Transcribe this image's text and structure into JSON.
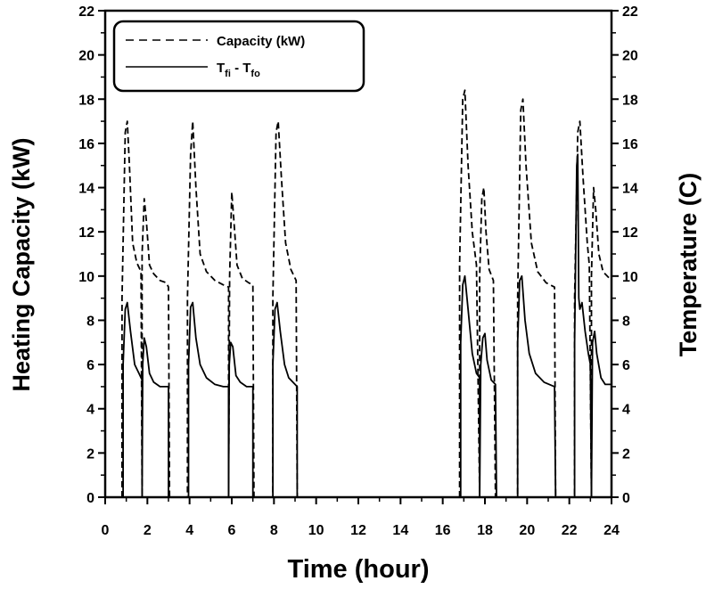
{
  "chart_data": {
    "type": "line",
    "xlabel": "Time (hour)",
    "ylabel": "Heating Capacity (kW)",
    "y2label": "Temperature (C)",
    "xlim": [
      0,
      24
    ],
    "ylim": [
      0,
      22
    ],
    "y2lim": [
      0,
      22
    ],
    "xticks": [
      "0",
      "2",
      "4",
      "6",
      "8",
      "10",
      "12",
      "14",
      "16",
      "18",
      "20",
      "22",
      "24"
    ],
    "yticks": [
      "0",
      "2",
      "4",
      "6",
      "8",
      "10",
      "12",
      "14",
      "16",
      "18",
      "20",
      "22"
    ],
    "grid": false,
    "legend": {
      "placement": "top-left",
      "entries": [
        {
          "label": "Capacity (kW)",
          "style": "dashed"
        },
        {
          "label": "T",
          "sub1": "fi",
          "mid": " - T",
          "sub2": "fo",
          "style": "solid"
        }
      ]
    },
    "series": [
      {
        "style": "dashed",
        "axis": "left",
        "points": [
          [
            0.8,
            0
          ],
          [
            0.8,
            9
          ],
          [
            0.95,
            16.5
          ],
          [
            1.05,
            17
          ],
          [
            1.15,
            15
          ],
          [
            1.3,
            11.5
          ],
          [
            1.5,
            10.6
          ],
          [
            1.7,
            10.2
          ],
          [
            1.75,
            0
          ],
          [
            1.75,
            11
          ],
          [
            1.85,
            13.5
          ],
          [
            1.95,
            12.5
          ],
          [
            2.1,
            10.5
          ],
          [
            2.3,
            10.1
          ],
          [
            2.6,
            9.8
          ],
          [
            2.9,
            9.7
          ],
          [
            3.0,
            9.5
          ],
          [
            3.05,
            0
          ],
          [
            3.9,
            0
          ],
          [
            3.9,
            9
          ],
          [
            4.05,
            15.5
          ],
          [
            4.15,
            17
          ],
          [
            4.3,
            14
          ],
          [
            4.5,
            11
          ],
          [
            4.8,
            10.2
          ],
          [
            5.2,
            9.8
          ],
          [
            5.6,
            9.6
          ],
          [
            5.85,
            9.5
          ],
          [
            5.85,
            0
          ],
          [
            5.9,
            10
          ],
          [
            6.0,
            13.8
          ],
          [
            6.1,
            12.5
          ],
          [
            6.25,
            10.5
          ],
          [
            6.5,
            9.9
          ],
          [
            6.8,
            9.7
          ],
          [
            7.0,
            9.6
          ],
          [
            7.05,
            0
          ],
          [
            7.95,
            0
          ],
          [
            7.95,
            9
          ],
          [
            8.1,
            16.5
          ],
          [
            8.2,
            17
          ],
          [
            8.35,
            14.5
          ],
          [
            8.55,
            11.5
          ],
          [
            8.8,
            10.3
          ],
          [
            9.05,
            9.8
          ],
          [
            9.1,
            0
          ],
          [
            16.8,
            0
          ],
          [
            16.8,
            10.5
          ],
          [
            16.95,
            18
          ],
          [
            17.05,
            18.4
          ],
          [
            17.2,
            15
          ],
          [
            17.4,
            12
          ],
          [
            17.6,
            10.5
          ],
          [
            17.75,
            0
          ],
          [
            17.75,
            10
          ],
          [
            17.85,
            13.5
          ],
          [
            17.95,
            14
          ],
          [
            18.05,
            12
          ],
          [
            18.2,
            10.3
          ],
          [
            18.4,
            9.8
          ],
          [
            18.5,
            0
          ],
          [
            19.55,
            0
          ],
          [
            19.55,
            9
          ],
          [
            19.7,
            17.5
          ],
          [
            19.8,
            18
          ],
          [
            19.95,
            15
          ],
          [
            20.2,
            11.5
          ],
          [
            20.5,
            10.2
          ],
          [
            20.9,
            9.7
          ],
          [
            21.3,
            9.5
          ],
          [
            21.35,
            0
          ],
          [
            22.25,
            0
          ],
          [
            22.25,
            9
          ],
          [
            22.4,
            16.5
          ],
          [
            22.5,
            17
          ],
          [
            22.65,
            14.5
          ],
          [
            22.85,
            11.5
          ],
          [
            22.95,
            10.5
          ],
          [
            23.05,
            0
          ],
          [
            23.05,
            10
          ],
          [
            23.15,
            14
          ],
          [
            23.25,
            13
          ],
          [
            23.4,
            11
          ],
          [
            23.6,
            10.2
          ],
          [
            23.9,
            9.9
          ],
          [
            24,
            9.9
          ]
        ]
      },
      {
        "style": "solid",
        "axis": "right",
        "points": [
          [
            0.85,
            0
          ],
          [
            0.85,
            6
          ],
          [
            0.95,
            8.5
          ],
          [
            1.05,
            8.8
          ],
          [
            1.2,
            7.5
          ],
          [
            1.4,
            6
          ],
          [
            1.6,
            5.6
          ],
          [
            1.75,
            5.3
          ],
          [
            1.75,
            0
          ],
          [
            1.78,
            6
          ],
          [
            1.85,
            7.2
          ],
          [
            1.95,
            6.8
          ],
          [
            2.1,
            5.6
          ],
          [
            2.3,
            5.2
          ],
          [
            2.6,
            5.0
          ],
          [
            2.9,
            5.0
          ],
          [
            3.0,
            5.0
          ],
          [
            3.0,
            0
          ],
          [
            3.95,
            0
          ],
          [
            3.95,
            6
          ],
          [
            4.05,
            8.6
          ],
          [
            4.15,
            8.8
          ],
          [
            4.3,
            7.2
          ],
          [
            4.5,
            6
          ],
          [
            4.8,
            5.4
          ],
          [
            5.2,
            5.1
          ],
          [
            5.6,
            5.0
          ],
          [
            5.85,
            5.0
          ],
          [
            5.85,
            0
          ],
          [
            5.88,
            6
          ],
          [
            5.95,
            7.0
          ],
          [
            6.05,
            6.8
          ],
          [
            6.2,
            5.5
          ],
          [
            6.4,
            5.2
          ],
          [
            6.7,
            5.0
          ],
          [
            7.0,
            5.0
          ],
          [
            7.0,
            0
          ],
          [
            7.95,
            0
          ],
          [
            7.95,
            6
          ],
          [
            8.05,
            8.5
          ],
          [
            8.15,
            8.8
          ],
          [
            8.3,
            7.5
          ],
          [
            8.5,
            6
          ],
          [
            8.7,
            5.4
          ],
          [
            9.0,
            5.1
          ],
          [
            9.1,
            5.0
          ],
          [
            9.1,
            0
          ],
          [
            16.85,
            0
          ],
          [
            16.85,
            7
          ],
          [
            16.95,
            9.6
          ],
          [
            17.05,
            10
          ],
          [
            17.2,
            8.5
          ],
          [
            17.4,
            6.5
          ],
          [
            17.6,
            5.6
          ],
          [
            17.75,
            5.4
          ],
          [
            17.75,
            0
          ],
          [
            17.8,
            6
          ],
          [
            17.9,
            7.2
          ],
          [
            18.0,
            7.4
          ],
          [
            18.1,
            6.2
          ],
          [
            18.3,
            5.3
          ],
          [
            18.5,
            5.1
          ],
          [
            18.55,
            0
          ],
          [
            19.55,
            0
          ],
          [
            19.55,
            7
          ],
          [
            19.65,
            9.8
          ],
          [
            19.75,
            10
          ],
          [
            19.9,
            8
          ],
          [
            20.1,
            6.5
          ],
          [
            20.4,
            5.6
          ],
          [
            20.8,
            5.2
          ],
          [
            21.3,
            5.0
          ],
          [
            21.35,
            0
          ],
          [
            22.25,
            0
          ],
          [
            22.25,
            7
          ],
          [
            22.35,
            15
          ],
          [
            22.4,
            15.5
          ],
          [
            22.45,
            9
          ],
          [
            22.5,
            8.5
          ],
          [
            22.6,
            8.8
          ],
          [
            22.75,
            7.5
          ],
          [
            22.9,
            6.5
          ],
          [
            23.0,
            6
          ],
          [
            23.05,
            0
          ],
          [
            23.1,
            7
          ],
          [
            23.2,
            7.5
          ],
          [
            23.3,
            6.5
          ],
          [
            23.5,
            5.4
          ],
          [
            23.7,
            5.1
          ],
          [
            24,
            5.1
          ]
        ]
      }
    ]
  }
}
